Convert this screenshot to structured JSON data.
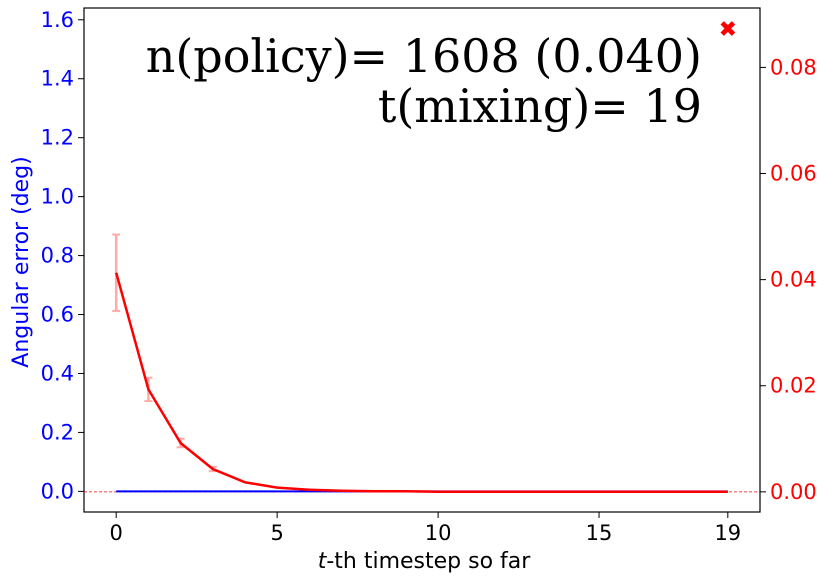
{
  "chart_data": {
    "type": "line",
    "xlabel_italic": "t",
    "xlabel_rest": "-th timestep so far",
    "ylabel_left": "Angular error (deg)",
    "xlim": [
      -1,
      20
    ],
    "ylim_left": [
      -0.07,
      1.64
    ],
    "ylim_right": [
      -0.0038,
      0.0912
    ],
    "x_ticks": [
      0,
      5,
      10,
      15,
      19
    ],
    "x_tick_labels": [
      "0",
      "5",
      "10",
      "15",
      "19"
    ],
    "left_ticks": [
      0.0,
      0.2,
      0.4,
      0.6,
      0.8,
      1.0,
      1.2,
      1.4,
      1.6
    ],
    "left_tick_labels": [
      "0.0",
      "0.2",
      "0.4",
      "0.6",
      "0.8",
      "1.0",
      "1.2",
      "1.4",
      "1.6"
    ],
    "right_ticks": [
      0.0,
      0.02,
      0.04,
      0.06,
      0.08
    ],
    "right_tick_labels": [
      "0.00",
      "0.02",
      "0.04",
      "0.06",
      "0.08"
    ],
    "annotations": {
      "line1": "n(policy)= 1608 (0.040)",
      "line2": "t(mixing)= 19"
    },
    "series": [
      {
        "axis": "left",
        "color": "#0000ff",
        "x": [
          0,
          1,
          2,
          3,
          4,
          5,
          6,
          7,
          8,
          9,
          10,
          11,
          12,
          13,
          14,
          15,
          16,
          17,
          18,
          19
        ],
        "values": [
          0,
          0,
          0,
          0,
          0,
          0,
          0,
          0,
          0,
          0,
          0,
          0,
          0,
          0,
          0,
          0,
          0,
          0,
          0,
          0
        ]
      },
      {
        "axis": "right",
        "color": "#ff0000",
        "x": [
          0,
          1,
          2,
          3,
          4,
          5,
          6,
          7,
          8,
          9,
          10,
          11,
          12,
          13,
          14,
          15,
          16,
          17,
          18,
          19
        ],
        "values": [
          0.0413,
          0.0193,
          0.0092,
          0.0043,
          0.0018,
          0.0008,
          0.0004,
          0.0002,
          0.0001,
          0.0001,
          0,
          0,
          0,
          0,
          0,
          0,
          0,
          0,
          0,
          0
        ],
        "errors": [
          0.0072,
          0.0022,
          0.0008,
          0.0004,
          0,
          0,
          0,
          0,
          0,
          0,
          0,
          0,
          0,
          0,
          0,
          0,
          0,
          0,
          0,
          0
        ]
      }
    ],
    "hline_right": 0.0,
    "marker": {
      "x": 19,
      "y_right": 0.0873,
      "symbol": "✖",
      "color": "#ff0000"
    },
    "colors": {
      "left_axis": "#0000ff",
      "right_axis": "#ff0000",
      "errorbar": "#ffaaaa"
    }
  }
}
